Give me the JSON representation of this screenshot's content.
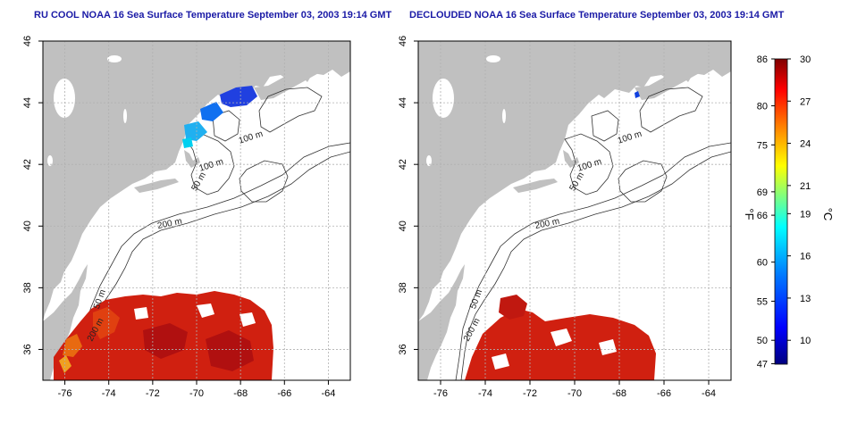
{
  "titles": {
    "left": "RU COOL NOAA 16 Sea Surface Temperature September 03, 2003 19:14 GMT",
    "right": "DECLOUDED NOAA 16 Sea Surface Temperature September 03, 2003 19:14 GMT"
  },
  "map": {
    "lon_range": [
      -77,
      -63
    ],
    "lat_range": [
      35,
      46
    ],
    "lon_ticks": [
      -76,
      -74,
      -72,
      -70,
      -68,
      -66,
      -64
    ],
    "lon_tick_labels": [
      "-76",
      "-74",
      "-72",
      "-70",
      "-68",
      "-66",
      "-64"
    ],
    "lat_ticks": [
      36,
      38,
      40,
      42,
      44,
      46
    ],
    "lat_tick_labels": [
      "36",
      "38",
      "40",
      "42",
      "44",
      "46"
    ],
    "grid": "dotted",
    "land_color": "#c0c0c0",
    "ocean_color": "#ffffff",
    "contour_labels": [
      {
        "text": "100 m",
        "lon": -67.5,
        "lat": 42.8,
        "rot": -18
      },
      {
        "text": "100 m",
        "lon": -69.3,
        "lat": 41.9,
        "rot": -18
      },
      {
        "text": "50 m",
        "lon": -69.8,
        "lat": 41.4,
        "rot": -60
      },
      {
        "text": "200 m",
        "lon": -71.2,
        "lat": 40.0,
        "rot": -12
      },
      {
        "text": "50 m",
        "lon": -74.3,
        "lat": 37.6,
        "rot": -70
      },
      {
        "text": "200 m",
        "lon": -74.5,
        "lat": 36.6,
        "rot": -62
      }
    ]
  },
  "colorbar": {
    "fahrenheit_ticks": [
      "86",
      "80",
      "75",
      "69",
      "66",
      "60",
      "55",
      "50",
      "47"
    ],
    "celsius_ticks": [
      "30",
      "27",
      "24",
      "21",
      "19",
      "16",
      "13",
      "10"
    ],
    "fahrenheit_label": "°F",
    "celsius_label": "°C",
    "range_celsius": [
      8.3,
      30
    ],
    "colors": [
      "#00007f",
      "#0000ff",
      "#007fff",
      "#00ffff",
      "#7fff7f",
      "#ffff00",
      "#ff7f00",
      "#ff0000",
      "#7f0000"
    ]
  }
}
